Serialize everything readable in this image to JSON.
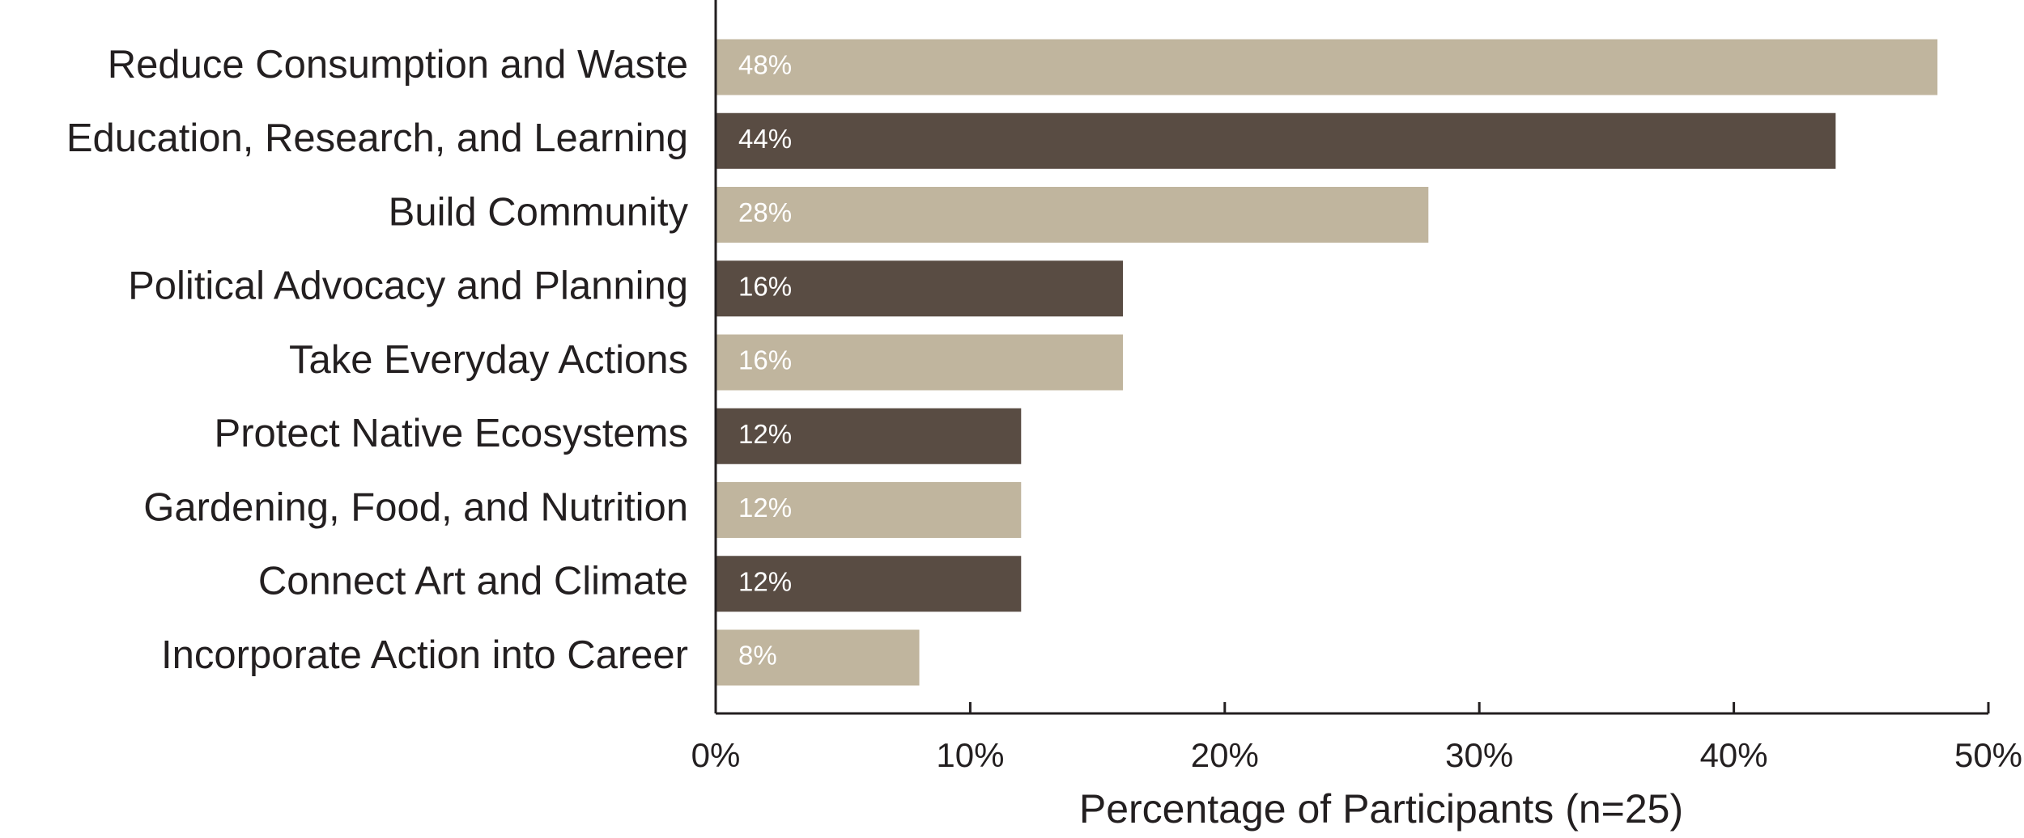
{
  "chart_data": {
    "type": "bar",
    "orientation": "horizontal",
    "title": "",
    "xlabel": "Percentage of Participants (n=25)",
    "ylabel": "",
    "categories": [
      "Reduce Consumption and Waste",
      "Education, Research, and Learning",
      "Build Community",
      "Political Advocacy and Planning",
      "Take Everyday Actions",
      "Protect Native Ecosystems",
      "Gardening, Food, and Nutrition",
      "Connect Art and Climate",
      "Incorporate Action into Career"
    ],
    "values": [
      48,
      44,
      28,
      16,
      16,
      12,
      12,
      12,
      8
    ],
    "data_labels": [
      "48%",
      "44%",
      "28%",
      "16%",
      "16%",
      "12%",
      "12%",
      "12%",
      "8%"
    ],
    "xlim": [
      0,
      50
    ],
    "x_ticks": [
      0,
      10,
      20,
      30,
      40,
      50
    ],
    "x_tick_labels": [
      "0%",
      "10%",
      "20%",
      "30%",
      "40%",
      "50%"
    ],
    "grid": false,
    "legend": "none",
    "colors": {
      "light_bar": "#c0b59e",
      "dark_bar": "#594c43",
      "axis": "#231f20",
      "data_label_text": "#ffffff"
    }
  }
}
